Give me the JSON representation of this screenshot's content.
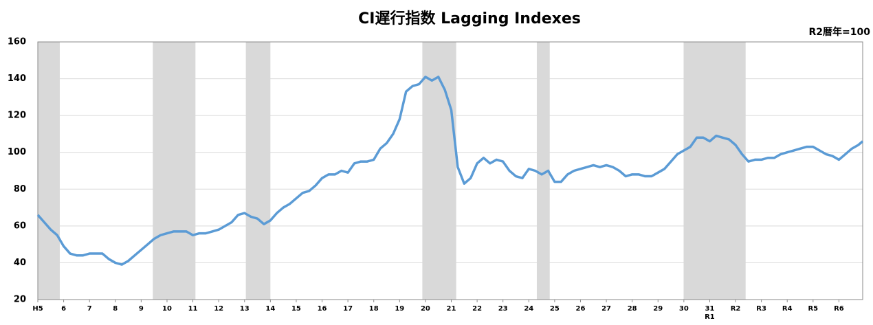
{
  "chart_data": {
    "type": "line",
    "title": "CI遅行指数 Lagging Indexes",
    "unit_label": "R2暦年=100",
    "x": [
      1993,
      1993.25,
      1993.5,
      1993.75,
      1994,
      1994.25,
      1994.5,
      1994.75,
      1995,
      1995.25,
      1995.5,
      1995.75,
      1996,
      1996.25,
      1996.5,
      1996.75,
      1997,
      1997.25,
      1997.5,
      1997.75,
      1998,
      1998.25,
      1998.5,
      1998.75,
      1999,
      1999.25,
      1999.5,
      1999.75,
      2000,
      2000.25,
      2000.5,
      2000.75,
      2001,
      2001.25,
      2001.5,
      2001.75,
      2002,
      2002.25,
      2002.5,
      2002.75,
      2003,
      2003.25,
      2003.5,
      2003.75,
      2004,
      2004.25,
      2004.5,
      2004.75,
      2005,
      2005.25,
      2005.5,
      2005.75,
      2006,
      2006.25,
      2006.5,
      2006.75,
      2007,
      2007.25,
      2007.5,
      2007.75,
      2008,
      2008.25,
      2008.5,
      2008.75,
      2009,
      2009.25,
      2009.5,
      2009.75,
      2010,
      2010.25,
      2010.5,
      2010.75,
      2011,
      2011.25,
      2011.5,
      2011.75,
      2012,
      2012.25,
      2012.5,
      2012.75,
      2013,
      2013.25,
      2013.5,
      2013.75,
      2014,
      2014.25,
      2014.5,
      2014.75,
      2015,
      2015.25,
      2015.5,
      2015.75,
      2016,
      2016.25,
      2016.5,
      2016.75,
      2017,
      2017.25,
      2017.5,
      2017.75,
      2018,
      2018.25,
      2018.5,
      2018.75,
      2019,
      2019.25,
      2019.5,
      2019.75,
      2020,
      2020.25,
      2020.5,
      2020.75,
      2021,
      2021.25,
      2021.5,
      2021.75,
      2022,
      2022.25,
      2022.5,
      2022.75,
      2023,
      2023.25,
      2023.5,
      2023.75,
      2024,
      2024.25,
      2024.5,
      2024.75,
      2024.92
    ],
    "series": [
      {
        "name": "CI遅行指数",
        "color": "#5b9bd5",
        "values": [
          66,
          62,
          58,
          55,
          49,
          45,
          44,
          44,
          45,
          45,
          45,
          42,
          40,
          39,
          41,
          44,
          47,
          50,
          53,
          55,
          56,
          57,
          57,
          57,
          55,
          56,
          56,
          57,
          58,
          60,
          62,
          66,
          67,
          65,
          64,
          61,
          63,
          67,
          70,
          72,
          75,
          78,
          79,
          82,
          86,
          88,
          88,
          90,
          89,
          94,
          95,
          95,
          96,
          102,
          105,
          110,
          118,
          133,
          136,
          137,
          141,
          139,
          141,
          134,
          123,
          92,
          83,
          86,
          94,
          97,
          94,
          96,
          95,
          90,
          87,
          86,
          91,
          90,
          88,
          90,
          84,
          84,
          88,
          90,
          91,
          92,
          93,
          92,
          93,
          92,
          90,
          87,
          88,
          88,
          87,
          87,
          89,
          91,
          95,
          99,
          101,
          103,
          108,
          108,
          106,
          109,
          108,
          107,
          104,
          99,
          95,
          96,
          96,
          97,
          97,
          99,
          100,
          101,
          102,
          103,
          103,
          101,
          99,
          98,
          96,
          99,
          102,
          104,
          106
        ]
      }
    ],
    "shaded_periods": [
      [
        1993,
        1993.85
      ],
      [
        1997.45,
        1999.1
      ],
      [
        2001.05,
        2002
      ],
      [
        2007.88,
        2009.19
      ],
      [
        2012.31,
        2012.81
      ],
      [
        2017.99,
        2020.39
      ]
    ],
    "xlim": [
      1993,
      2024.92
    ],
    "xticks": [
      {
        "value": 1993,
        "label": "H5"
      },
      {
        "value": 1994,
        "label": "6"
      },
      {
        "value": 1995,
        "label": "7"
      },
      {
        "value": 1996,
        "label": "8"
      },
      {
        "value": 1997,
        "label": "9"
      },
      {
        "value": 1998,
        "label": "10"
      },
      {
        "value": 1999,
        "label": "11"
      },
      {
        "value": 2000,
        "label": "12"
      },
      {
        "value": 2001,
        "label": "13"
      },
      {
        "value": 2002,
        "label": "14"
      },
      {
        "value": 2003,
        "label": "15"
      },
      {
        "value": 2004,
        "label": "16"
      },
      {
        "value": 2005,
        "label": "17"
      },
      {
        "value": 2006,
        "label": "18"
      },
      {
        "value": 2007,
        "label": "19"
      },
      {
        "value": 2008,
        "label": "20"
      },
      {
        "value": 2009,
        "label": "21"
      },
      {
        "value": 2010,
        "label": "22"
      },
      {
        "value": 2011,
        "label": "23"
      },
      {
        "value": 2012,
        "label": "24"
      },
      {
        "value": 2013,
        "label": "25"
      },
      {
        "value": 2014,
        "label": "26"
      },
      {
        "value": 2015,
        "label": "27"
      },
      {
        "value": 2016,
        "label": "28"
      },
      {
        "value": 2017,
        "label": "29"
      },
      {
        "value": 2018,
        "label": "30"
      },
      {
        "value": 2019,
        "label": "31\nR1"
      },
      {
        "value": 2020,
        "label": "R2"
      },
      {
        "value": 2021,
        "label": "R3"
      },
      {
        "value": 2022,
        "label": "R4"
      },
      {
        "value": 2023,
        "label": "R5"
      },
      {
        "value": 2024,
        "label": "R6"
      }
    ],
    "ylim": [
      20,
      160
    ],
    "yticks": [
      20,
      40,
      60,
      80,
      100,
      120,
      140,
      160
    ],
    "grid": true
  }
}
